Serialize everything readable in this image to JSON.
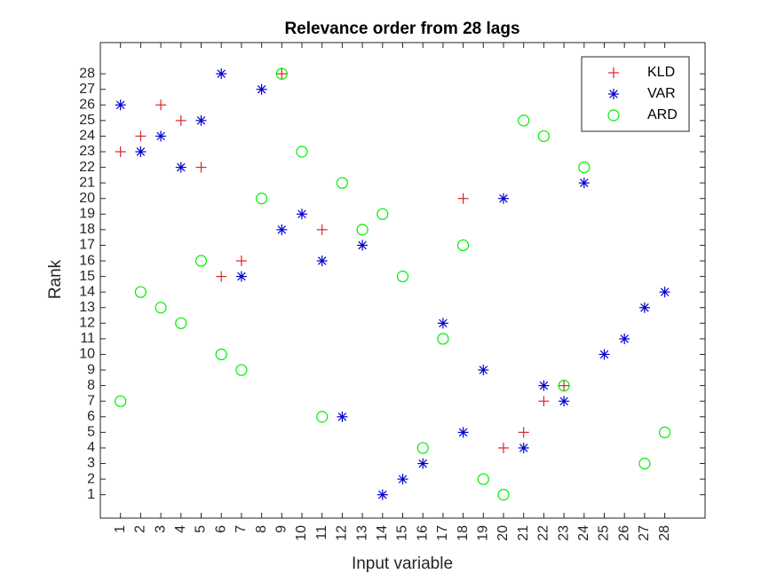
{
  "chart_data": {
    "type": "scatter",
    "title": "Relevance order from 28 lags",
    "xlabel": "Input variable",
    "ylabel": "Rank",
    "xlim": [
      0,
      30
    ],
    "ylim": [
      -0.5,
      30
    ],
    "xticks": [
      1,
      2,
      3,
      4,
      5,
      6,
      7,
      8,
      9,
      10,
      11,
      12,
      13,
      14,
      15,
      16,
      17,
      18,
      19,
      20,
      21,
      22,
      23,
      24,
      25,
      26,
      27,
      28
    ],
    "yticks": [
      1,
      2,
      3,
      4,
      5,
      6,
      7,
      8,
      9,
      10,
      11,
      12,
      13,
      14,
      15,
      16,
      17,
      18,
      19,
      20,
      21,
      22,
      23,
      24,
      25,
      26,
      27,
      28
    ],
    "legend_position": "top-right",
    "grid": false,
    "series": [
      {
        "name": "KLD",
        "marker": "plus",
        "color": "#d62728",
        "points": [
          [
            1,
            23
          ],
          [
            2,
            24
          ],
          [
            3,
            26
          ],
          [
            4,
            25
          ],
          [
            5,
            22
          ],
          [
            6,
            15
          ],
          [
            7,
            16
          ],
          [
            9,
            28
          ],
          [
            11,
            18
          ],
          [
            18,
            20
          ],
          [
            20,
            4
          ],
          [
            21,
            5
          ],
          [
            22,
            7
          ],
          [
            23,
            8
          ]
        ]
      },
      {
        "name": "VAR",
        "marker": "asterisk",
        "color": "#0000cc",
        "points": [
          [
            1,
            26
          ],
          [
            2,
            23
          ],
          [
            3,
            24
          ],
          [
            4,
            22
          ],
          [
            5,
            25
          ],
          [
            6,
            28
          ],
          [
            7,
            15
          ],
          [
            8,
            27
          ],
          [
            9,
            18
          ],
          [
            10,
            19
          ],
          [
            11,
            16
          ],
          [
            12,
            6
          ],
          [
            13,
            17
          ],
          [
            14,
            1
          ],
          [
            15,
            2
          ],
          [
            16,
            3
          ],
          [
            17,
            12
          ],
          [
            18,
            5
          ],
          [
            19,
            9
          ],
          [
            20,
            20
          ],
          [
            21,
            4
          ],
          [
            22,
            8
          ],
          [
            23,
            7
          ],
          [
            24,
            21
          ],
          [
            25,
            10
          ],
          [
            26,
            11
          ],
          [
            27,
            13
          ],
          [
            28,
            14
          ]
        ]
      },
      {
        "name": "ARD",
        "marker": "circle",
        "color": "#00ee00",
        "points": [
          [
            1,
            7
          ],
          [
            2,
            14
          ],
          [
            3,
            13
          ],
          [
            4,
            12
          ],
          [
            5,
            16
          ],
          [
            6,
            10
          ],
          [
            7,
            9
          ],
          [
            8,
            20
          ],
          [
            9,
            28
          ],
          [
            10,
            23
          ],
          [
            11,
            6
          ],
          [
            12,
            21
          ],
          [
            13,
            18
          ],
          [
            14,
            19
          ],
          [
            15,
            15
          ],
          [
            16,
            4
          ],
          [
            17,
            11
          ],
          [
            18,
            17
          ],
          [
            19,
            2
          ],
          [
            20,
            1
          ],
          [
            21,
            25
          ],
          [
            22,
            24
          ],
          [
            23,
            8
          ],
          [
            24,
            22
          ],
          [
            27,
            3
          ],
          [
            28,
            5
          ]
        ]
      }
    ]
  }
}
